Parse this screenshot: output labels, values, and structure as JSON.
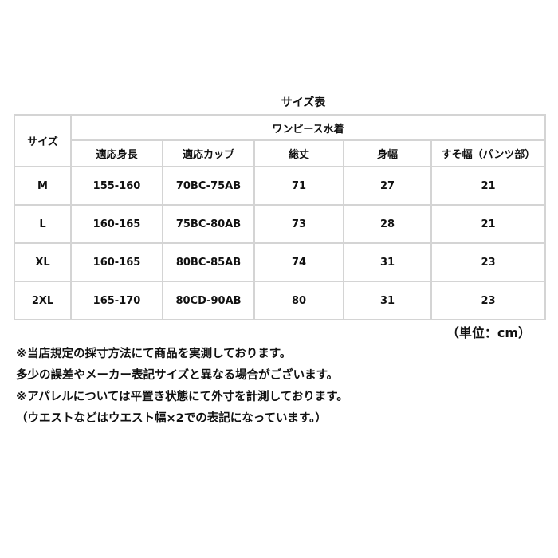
{
  "title": "サイズ表",
  "table": {
    "size_header": "サイズ",
    "group_header": "ワンピース水着",
    "columns": [
      "適応身長",
      "適応カップ",
      "総丈",
      "身幅",
      "すそ幅（パンツ部）"
    ],
    "rows": [
      {
        "size": "M",
        "cells": [
          "155-160",
          "70BC-75AB",
          "71",
          "27",
          "21"
        ]
      },
      {
        "size": "L",
        "cells": [
          "160-165",
          "75BC-80AB",
          "73",
          "28",
          "21"
        ]
      },
      {
        "size": "XL",
        "cells": [
          "160-165",
          "80BC-85AB",
          "74",
          "31",
          "23"
        ]
      },
      {
        "size": "2XL",
        "cells": [
          "165-170",
          "80CD-90AB",
          "80",
          "31",
          "23"
        ]
      }
    ]
  },
  "unit": "（単位：cm）",
  "notes": [
    "※当店規定の採寸方法にて商品を実測しております。",
    "多少の誤差やメーカー表記サイズと異なる場合がございます。",
    "※アパレルについては平置き状態にて外寸を計測しております。",
    "（ウエストなどはウエスト幅×2での表記になっています。）"
  ]
}
